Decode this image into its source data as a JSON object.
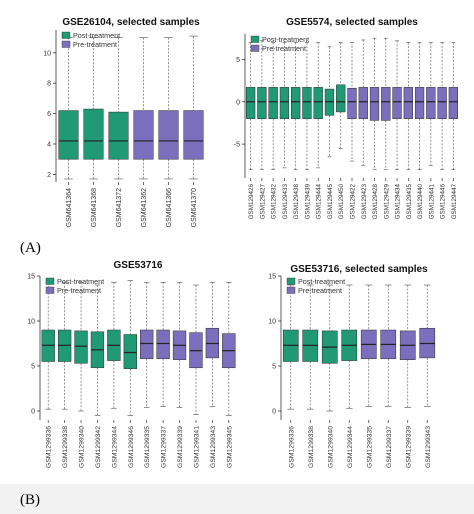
{
  "figure": {
    "panel_labels": [
      "(A)",
      "(B)"
    ]
  },
  "colors": {
    "post": "#1f9a74",
    "pre": "#7b6fbd",
    "whisker": "#666666",
    "median": "#222222",
    "background": "#ffffff"
  },
  "chart_data": [
    {
      "type": "box",
      "title": "GSE26104, selected samples",
      "legend": [
        "Post-treatment",
        "Pre-treatment"
      ],
      "legend_position": "top-left",
      "ylim": [
        1.5,
        11.5
      ],
      "yticks": [
        2,
        4,
        6,
        8,
        10
      ],
      "categories": [
        "GSM641364",
        "GSM641368",
        "GSM641372",
        "GSM641362",
        "GSM641366",
        "GSM641370"
      ],
      "groups": [
        "Post-treatment",
        "Post-treatment",
        "Post-treatment",
        "Pre-treatment",
        "Pre-treatment",
        "Pre-treatment"
      ],
      "boxes": [
        {
          "min": 1.7,
          "q1": 3.0,
          "median": 4.2,
          "q3": 6.2,
          "max": 11.0
        },
        {
          "min": 1.7,
          "q1": 3.0,
          "median": 4.2,
          "q3": 6.3,
          "max": 11.0
        },
        {
          "min": 1.7,
          "q1": 3.0,
          "median": 4.2,
          "q3": 6.1,
          "max": 11.0
        },
        {
          "min": 1.7,
          "q1": 3.0,
          "median": 4.2,
          "q3": 6.2,
          "max": 11.0
        },
        {
          "min": 1.7,
          "q1": 3.0,
          "median": 4.2,
          "q3": 6.2,
          "max": 11.0
        },
        {
          "min": 1.7,
          "q1": 3.0,
          "median": 4.2,
          "q3": 6.2,
          "max": 11.1
        }
      ]
    },
    {
      "type": "box",
      "title": "GSE5574, selected samples",
      "legend": [
        "Post-treatment",
        "Pre-treatment"
      ],
      "legend_position": "top-left",
      "ylim": [
        -9,
        8
      ],
      "yticks": [
        -5,
        0,
        5
      ],
      "categories": [
        "GSM129426",
        "GSM129427",
        "GSM129432",
        "GSM129433",
        "GSM129438",
        "GSM129439",
        "GSM129444",
        "GSM129445",
        "GSM129450",
        "GSM129422",
        "GSM129423",
        "GSM129428",
        "GSM129429",
        "GSM129434",
        "GSM129435",
        "GSM129440",
        "GSM129441",
        "GSM129446",
        "GSM129447"
      ],
      "groups": [
        "Post-treatment",
        "Post-treatment",
        "Post-treatment",
        "Post-treatment",
        "Post-treatment",
        "Post-treatment",
        "Post-treatment",
        "Post-treatment",
        "Post-treatment",
        "Pre-treatment",
        "Pre-treatment",
        "Pre-treatment",
        "Pre-treatment",
        "Pre-treatment",
        "Pre-treatment",
        "Pre-treatment",
        "Pre-treatment",
        "Pre-treatment",
        "Pre-treatment"
      ],
      "boxes": [
        {
          "min": -8.0,
          "q1": -2.0,
          "median": 0.0,
          "q3": 1.7,
          "max": 7.0
        },
        {
          "min": -8.0,
          "q1": -2.0,
          "median": 0.0,
          "q3": 1.7,
          "max": 7.2
        },
        {
          "min": -8.0,
          "q1": -2.0,
          "median": 0.0,
          "q3": 1.7,
          "max": 7.0
        },
        {
          "min": -7.8,
          "q1": -2.0,
          "median": 0.0,
          "q3": 1.7,
          "max": 7.0
        },
        {
          "min": -8.0,
          "q1": -2.0,
          "median": 0.0,
          "q3": 1.7,
          "max": 7.0
        },
        {
          "min": -8.0,
          "q1": -2.0,
          "median": 0.0,
          "q3": 1.7,
          "max": 7.0
        },
        {
          "min": -7.8,
          "q1": -2.0,
          "median": 0.0,
          "q3": 1.7,
          "max": 7.0
        },
        {
          "min": -6.5,
          "q1": -1.6,
          "median": 0.0,
          "q3": 1.5,
          "max": 6.5
        },
        {
          "min": -5.5,
          "q1": -1.2,
          "median": 0.0,
          "q3": 2.0,
          "max": 7.0
        },
        {
          "min": -7.0,
          "q1": -2.0,
          "median": 0.0,
          "q3": 1.6,
          "max": 7.0
        },
        {
          "min": -7.5,
          "q1": -2.0,
          "median": 0.0,
          "q3": 1.7,
          "max": 7.3
        },
        {
          "min": -8.0,
          "q1": -2.2,
          "median": 0.0,
          "q3": 1.7,
          "max": 7.5
        },
        {
          "min": -8.0,
          "q1": -2.2,
          "median": 0.0,
          "q3": 1.7,
          "max": 7.5
        },
        {
          "min": -8.0,
          "q1": -2.0,
          "median": 0.0,
          "q3": 1.7,
          "max": 7.2
        },
        {
          "min": -8.0,
          "q1": -2.0,
          "median": 0.0,
          "q3": 1.7,
          "max": 7.0
        },
        {
          "min": -8.0,
          "q1": -2.0,
          "median": 0.0,
          "q3": 1.7,
          "max": 7.0
        },
        {
          "min": -7.5,
          "q1": -2.0,
          "median": 0.0,
          "q3": 1.7,
          "max": 7.0
        },
        {
          "min": -8.0,
          "q1": -2.0,
          "median": 0.0,
          "q3": 1.7,
          "max": 7.0
        },
        {
          "min": -8.0,
          "q1": -2.0,
          "median": 0.0,
          "q3": 1.7,
          "max": 7.0
        }
      ]
    },
    {
      "type": "box",
      "title": "GSE53716",
      "legend": [
        "Post-treatment",
        "Pre-treatment"
      ],
      "legend_position": "top-left",
      "ylim": [
        -1,
        15
      ],
      "yticks": [
        0,
        5,
        10,
        15
      ],
      "categories": [
        "GSM1299336",
        "GSM1299338",
        "GSM1299340",
        "GSM1299342",
        "GSM1299344",
        "GSM1299346",
        "GSM1299335",
        "GSM1299337",
        "GSM1299339",
        "GSM1299341",
        "GSM1299343",
        "GSM1299345"
      ],
      "groups": [
        "Post-treatment",
        "Post-treatment",
        "Post-treatment",
        "Post-treatment",
        "Post-treatment",
        "Post-treatment",
        "Pre-treatment",
        "Pre-treatment",
        "Pre-treatment",
        "Pre-treatment",
        "Pre-treatment",
        "Pre-treatment"
      ],
      "boxes": [
        {
          "min": 0.2,
          "q1": 5.5,
          "median": 7.3,
          "q3": 9.0,
          "max": 14.3
        },
        {
          "min": 0.2,
          "q1": 5.5,
          "median": 7.3,
          "q3": 9.0,
          "max": 14.3
        },
        {
          "min": 0.0,
          "q1": 5.3,
          "median": 7.2,
          "q3": 8.9,
          "max": 14.3
        },
        {
          "min": -0.5,
          "q1": 4.8,
          "median": 6.8,
          "q3": 8.8,
          "max": 14.0
        },
        {
          "min": 0.3,
          "q1": 5.6,
          "median": 7.3,
          "q3": 9.0,
          "max": 14.3
        },
        {
          "min": -0.5,
          "q1": 4.7,
          "median": 6.5,
          "q3": 8.5,
          "max": 14.5
        },
        {
          "min": 0.4,
          "q1": 5.8,
          "median": 7.5,
          "q3": 9.0,
          "max": 14.3
        },
        {
          "min": 0.5,
          "q1": 5.8,
          "median": 7.5,
          "q3": 9.0,
          "max": 14.3
        },
        {
          "min": 0.4,
          "q1": 5.7,
          "median": 7.3,
          "q3": 8.9,
          "max": 14.3
        },
        {
          "min": -0.4,
          "q1": 4.8,
          "median": 6.7,
          "q3": 8.7,
          "max": 14.0
        },
        {
          "min": 0.5,
          "q1": 5.9,
          "median": 7.5,
          "q3": 9.2,
          "max": 14.3
        },
        {
          "min": -0.5,
          "q1": 4.8,
          "median": 6.7,
          "q3": 8.6,
          "max": 14.3
        }
      ]
    },
    {
      "type": "box",
      "title": "GSE53716, selected samples",
      "legend": [
        "Post-treatment",
        "Pre-treatment"
      ],
      "legend_position": "top-left",
      "ylim": [
        -1,
        15
      ],
      "yticks": [
        0,
        5,
        10,
        15
      ],
      "categories": [
        "GSM1299336",
        "GSM1299338",
        "GSM1299340",
        "GSM1299344",
        "GSM1299335",
        "GSM1299337",
        "GSM1299339",
        "GSM1299343"
      ],
      "groups": [
        "Post-treatment",
        "Post-treatment",
        "Post-treatment",
        "Post-treatment",
        "Pre-treatment",
        "Pre-treatment",
        "Pre-treatment",
        "Pre-treatment"
      ],
      "boxes": [
        {
          "min": 0.2,
          "q1": 5.5,
          "median": 7.3,
          "q3": 9.0,
          "max": 14.0
        },
        {
          "min": 0.2,
          "q1": 5.5,
          "median": 7.3,
          "q3": 9.0,
          "max": 14.0
        },
        {
          "min": 0.0,
          "q1": 5.3,
          "median": 7.1,
          "q3": 8.9,
          "max": 14.0
        },
        {
          "min": 0.3,
          "q1": 5.6,
          "median": 7.3,
          "q3": 9.0,
          "max": 14.0
        },
        {
          "min": 0.5,
          "q1": 5.8,
          "median": 7.4,
          "q3": 9.0,
          "max": 14.0
        },
        {
          "min": 0.5,
          "q1": 5.8,
          "median": 7.4,
          "q3": 9.0,
          "max": 14.0
        },
        {
          "min": 0.4,
          "q1": 5.7,
          "median": 7.3,
          "q3": 8.9,
          "max": 14.0
        },
        {
          "min": 0.5,
          "q1": 5.9,
          "median": 7.5,
          "q3": 9.2,
          "max": 14.0
        }
      ]
    }
  ]
}
